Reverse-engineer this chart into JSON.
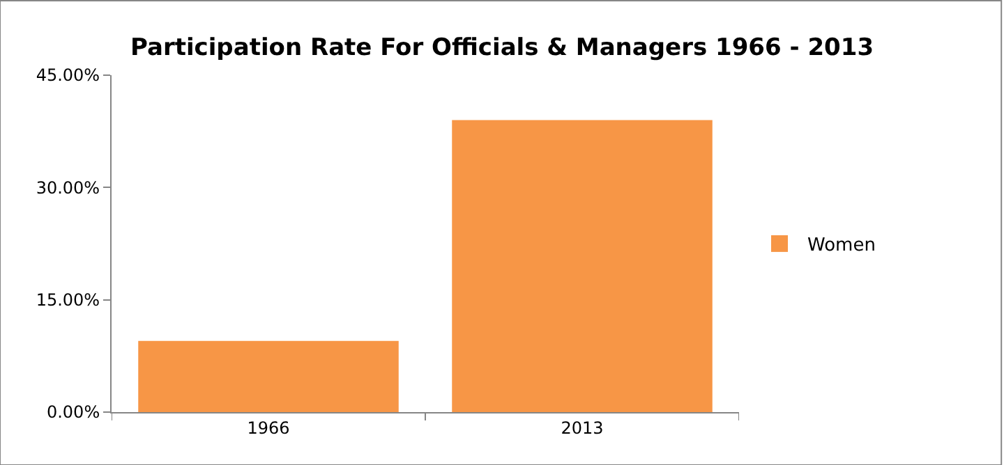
{
  "chart_data": {
    "type": "bar",
    "title": "Participation Rate For Officials & Managers 1966 - 2013",
    "categories": [
      "1966",
      "2013"
    ],
    "series": [
      {
        "name": "Women",
        "color": "#f79646",
        "values": [
          9.5,
          39.0
        ]
      }
    ],
    "ylim": [
      0,
      45
    ],
    "yticks": [
      {
        "value": 0,
        "label": "0.00%"
      },
      {
        "value": 15,
        "label": "15.00%"
      },
      {
        "value": 30,
        "label": "30.00%"
      },
      {
        "value": 45,
        "label": "45.00%"
      }
    ],
    "legend": "right"
  }
}
